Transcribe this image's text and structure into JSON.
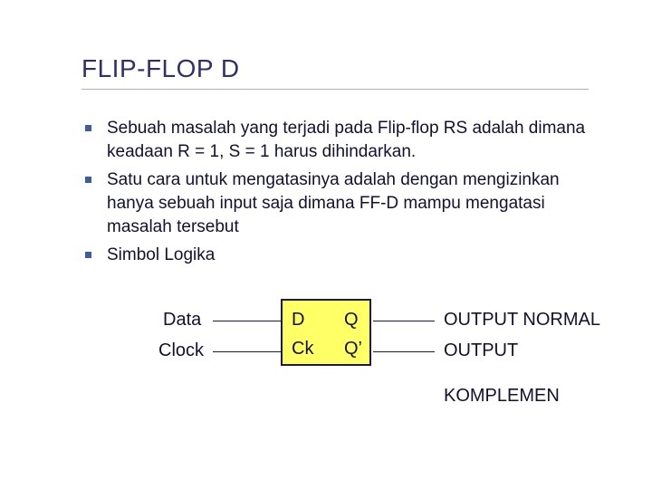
{
  "title": "FLIP-FLOP D",
  "bullets": [
    "Sebuah masalah yang terjadi pada Flip-flop RS adalah dimana keadaan R = 1, S = 1 harus dihindarkan.",
    "Satu cara untuk mengatasinya adalah dengan mengizinkan hanya sebuah input saja dimana FF-D mampu mengatasi masalah tersebut",
    "Simbol Logika"
  ],
  "diagram": {
    "inputs": {
      "data": "Data",
      "clock": "Clock"
    },
    "pins": {
      "D": "D",
      "Ck": "Ck",
      "Q": "Q",
      "Qp": "Q’"
    },
    "outputs": {
      "normal": "OUTPUT NORMAL",
      "output": "OUTPUT",
      "komplemen": "KOMPLEMEN"
    },
    "colors": {
      "box_fill": "#ffff66",
      "box_border": "#1a1a4d",
      "wire": "#1a1a4d",
      "title": "#2f2f6f",
      "bullet_square": "#3d5da0",
      "text": "#111133",
      "background": "#ffffff"
    }
  }
}
